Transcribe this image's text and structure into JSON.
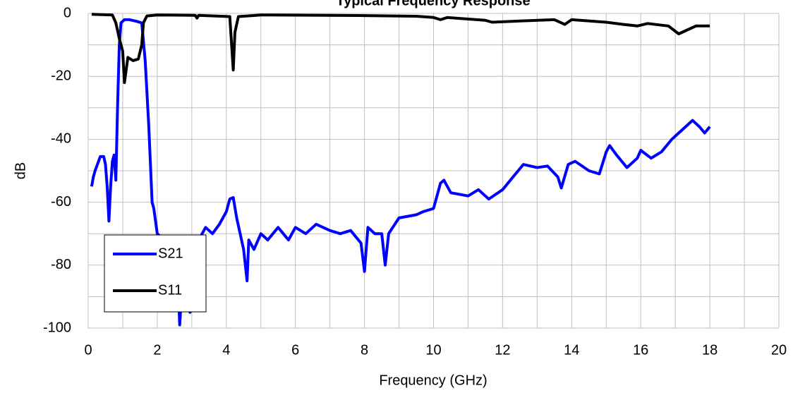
{
  "chart_data": {
    "type": "line",
    "title": "Typical Frequency Response",
    "x_label": "Frequency (GHz)",
    "y_label": "dB",
    "xlim": [
      0,
      20
    ],
    "xticks": [
      0,
      2,
      4,
      6,
      8,
      10,
      12,
      14,
      16,
      18,
      20
    ],
    "xminor": [
      1,
      3,
      5,
      7,
      9,
      11,
      13,
      15,
      17,
      19
    ],
    "ylim": [
      -100,
      0
    ],
    "yticks": [
      -100,
      -80,
      -60,
      -40,
      -20,
      0
    ],
    "yminor": [
      -90,
      -70,
      -50,
      -30,
      -10
    ],
    "grid": true,
    "legend": "lower left",
    "series": [
      {
        "name": "S21",
        "color": "#0000ff",
        "x": [
          0.1,
          0.15,
          0.2,
          0.3,
          0.35,
          0.45,
          0.5,
          0.55,
          0.6,
          0.65,
          0.7,
          0.75,
          0.8,
          0.85,
          0.9,
          0.95,
          1.05,
          1.2,
          1.4,
          1.55,
          1.65,
          1.75,
          1.85,
          1.9,
          2.0,
          2.2,
          2.4,
          2.6,
          2.65,
          2.7,
          2.85,
          2.95,
          3.0,
          3.2,
          3.4,
          3.6,
          3.8,
          4.0,
          4.1,
          4.2,
          4.3,
          4.4,
          4.5,
          4.6,
          4.65,
          4.8,
          5.0,
          5.2,
          5.5,
          5.8,
          6.0,
          6.3,
          6.6,
          7.0,
          7.3,
          7.6,
          7.9,
          8.0,
          8.1,
          8.3,
          8.5,
          8.6,
          8.7,
          9.0,
          9.5,
          9.7,
          10.0,
          10.2,
          10.3,
          10.5,
          11.0,
          11.3,
          11.6,
          12.0,
          12.3,
          12.6,
          13.0,
          13.3,
          13.6,
          13.7,
          13.9,
          14.1,
          14.5,
          14.8,
          15.0,
          15.1,
          15.3,
          15.6,
          15.9,
          16.0,
          16.3,
          16.6,
          16.9,
          17.1,
          17.3,
          17.5,
          17.7,
          17.85,
          18.0
        ],
        "values": [
          -55,
          -52,
          -50,
          -47,
          -45.5,
          -45.5,
          -48,
          -55,
          -66,
          -55,
          -47,
          -45,
          -53,
          -30,
          -10,
          -3,
          -2,
          -2,
          -2.5,
          -3,
          -15,
          -35,
          -60,
          -62,
          -70,
          -72,
          -75,
          -85,
          -99,
          -90,
          -80,
          -95,
          -80,
          -72,
          -68,
          -70,
          -67,
          -63,
          -59,
          -58.5,
          -65,
          -70,
          -75,
          -85,
          -72,
          -75,
          -70,
          -72,
          -68,
          -72,
          -68,
          -70,
          -67,
          -69,
          -70,
          -69,
          -73,
          -82,
          -68,
          -70,
          -70,
          -80,
          -70,
          -65,
          -64,
          -63,
          -62,
          -54,
          -53,
          -57,
          -58,
          -56,
          -59,
          -56,
          -52,
          -48,
          -49,
          -48.5,
          -52,
          -55.5,
          -48,
          -47,
          -50,
          -51,
          -44,
          -42,
          -45,
          -49,
          -46,
          -43.5,
          -46,
          -44,
          -40,
          -38,
          -36,
          -34,
          -36,
          -38,
          -36
        ]
      },
      {
        "name": "S11",
        "color": "#000000",
        "x": [
          0.1,
          0.7,
          0.8,
          0.9,
          1.0,
          1.05,
          1.1,
          1.15,
          1.3,
          1.45,
          1.55,
          1.6,
          1.7,
          2.0,
          3.1,
          3.15,
          3.2,
          4.1,
          4.2,
          4.25,
          4.35,
          5.0,
          8.0,
          9.5,
          10.0,
          10.2,
          10.4,
          11.0,
          11.5,
          11.7,
          12.5,
          13.5,
          13.8,
          14.0,
          15.0,
          15.5,
          15.9,
          16.2,
          16.8,
          17.1,
          17.3,
          17.6,
          18.0
        ],
        "values": [
          -0.3,
          -0.5,
          -3,
          -8,
          -12,
          -22,
          -18,
          -14,
          -15,
          -14.5,
          -10,
          -3,
          -0.8,
          -0.5,
          -0.6,
          -1.5,
          -0.6,
          -1,
          -18,
          -6,
          -1,
          -0.5,
          -0.7,
          -0.9,
          -1.3,
          -2,
          -1.3,
          -1.8,
          -2.2,
          -2.8,
          -2.4,
          -2,
          -3.5,
          -2,
          -2.8,
          -3.5,
          -4,
          -3.2,
          -4,
          -6.5,
          -5.5,
          -4,
          -4
        ]
      }
    ]
  }
}
